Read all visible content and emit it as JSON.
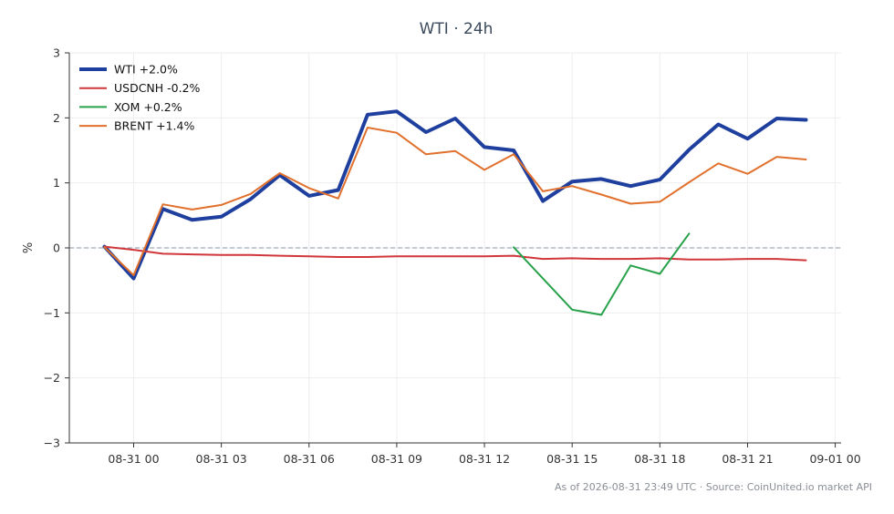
{
  "chart_data": {
    "type": "line",
    "title": "WTI · 24h",
    "xlabel": "",
    "ylabel": "%",
    "x_ticks": [
      "08-31 00",
      "08-31 03",
      "08-31 06",
      "08-31 09",
      "08-31 12",
      "08-31 15",
      "08-31 18",
      "08-31 21",
      "09-01 00"
    ],
    "x_tick_hours": [
      0,
      3,
      6,
      9,
      12,
      15,
      18,
      21,
      24
    ],
    "xlim_hours": [
      -2.2,
      24.2
    ],
    "y_ticks": [
      "−3",
      "−2",
      "−1",
      "0",
      "1",
      "2",
      "3"
    ],
    "y_tick_values": [
      -3,
      -2,
      -1,
      0,
      1,
      2,
      3
    ],
    "ylim": [
      -3,
      3
    ],
    "grid": true,
    "zero_line": true,
    "legend_position": "top-left",
    "series": [
      {
        "name": "WTI +2.0%",
        "color": "#1f3f9e",
        "width": 4,
        "x_hours": [
          -1,
          0,
          1,
          2,
          3,
          4,
          5,
          6,
          7,
          8,
          9,
          10,
          11,
          12,
          13,
          14,
          15,
          16,
          17,
          18,
          19,
          20,
          21,
          22,
          23
        ],
        "values": [
          0.02,
          -0.47,
          0.6,
          0.43,
          0.48,
          0.75,
          1.12,
          0.8,
          0.89,
          2.05,
          2.1,
          1.78,
          1.99,
          1.55,
          1.5,
          0.72,
          1.02,
          1.06,
          0.95,
          1.05,
          1.51,
          1.9,
          1.68,
          1.99,
          1.97
        ]
      },
      {
        "name": "USDCNH -0.2%",
        "color": "#d0363a",
        "width": 2,
        "x_hours": [
          -1,
          0,
          1,
          2,
          3,
          4,
          5,
          6,
          7,
          8,
          9,
          10,
          11,
          12,
          13,
          14,
          15,
          16,
          17,
          18,
          19,
          20,
          21,
          22,
          23
        ],
        "values": [
          0.02,
          -0.03,
          -0.09,
          -0.1,
          -0.11,
          -0.11,
          -0.12,
          -0.13,
          -0.14,
          -0.14,
          -0.13,
          -0.13,
          -0.13,
          -0.13,
          -0.12,
          -0.17,
          -0.16,
          -0.17,
          -0.17,
          -0.16,
          -0.18,
          -0.18,
          -0.17,
          -0.17,
          -0.19
        ]
      },
      {
        "name": "XOM +0.2%",
        "color": "#27a14a",
        "width": 2,
        "x_hours": [
          13,
          15,
          16,
          17,
          18,
          19
        ],
        "values": [
          0.01,
          -0.95,
          -1.03,
          -0.27,
          -0.4,
          0.22
        ]
      },
      {
        "name": "BRENT +1.4%",
        "color": "#e0702c",
        "width": 2,
        "x_hours": [
          -1,
          0,
          1,
          2,
          3,
          4,
          5,
          6,
          7,
          8,
          9,
          10,
          11,
          12,
          13,
          14,
          15,
          16,
          17,
          18,
          19,
          20,
          21,
          22,
          23
        ],
        "values": [
          0.01,
          -0.42,
          0.67,
          0.59,
          0.66,
          0.83,
          1.15,
          0.92,
          0.76,
          1.85,
          1.77,
          1.44,
          1.49,
          1.2,
          1.44,
          0.87,
          0.95,
          0.82,
          0.68,
          0.71,
          1.01,
          1.3,
          1.14,
          1.4,
          1.36
        ]
      }
    ]
  },
  "footer": "As of 2026-08-31 23:49 UTC · Source: CoinUnited.io market API",
  "colors": {
    "axis": "#333333",
    "grid": "#eeeeee",
    "zero_line": "#8a96a8",
    "title": "#3b4a5c",
    "footer": "#8a8f96"
  }
}
